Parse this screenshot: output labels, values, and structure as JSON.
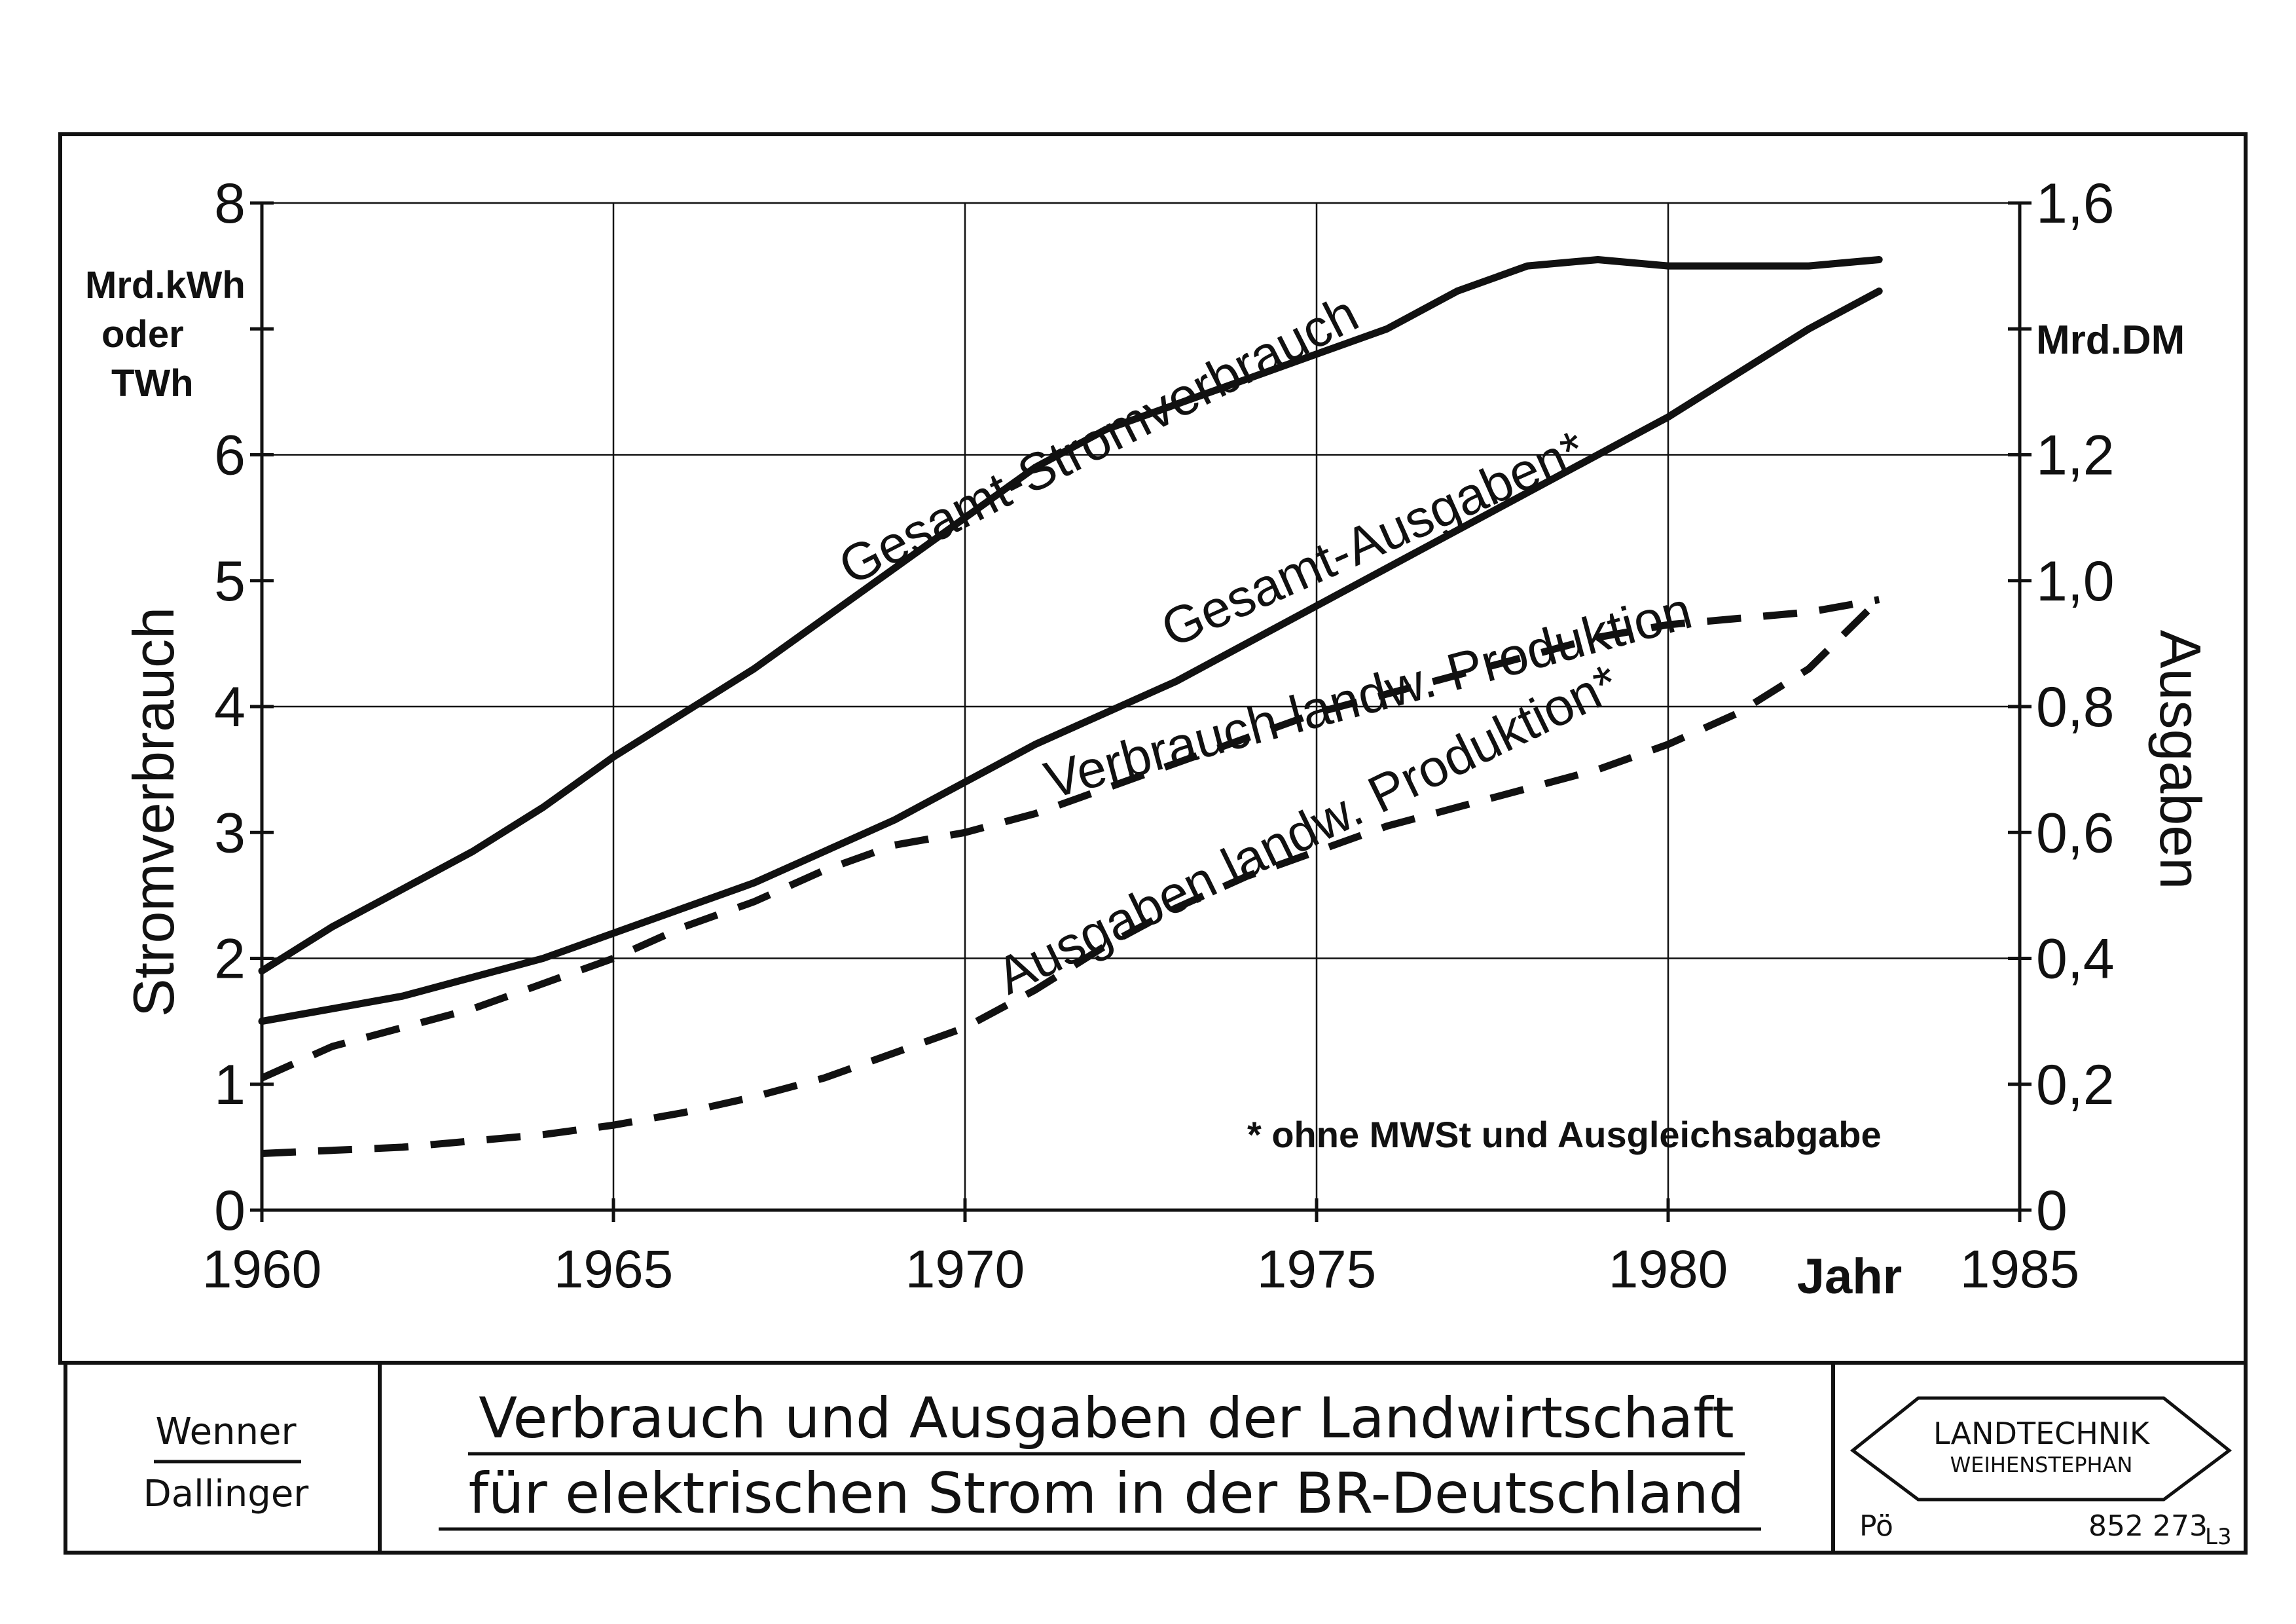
{
  "chart_data": {
    "type": "line",
    "title": "Verbrauch und Ausgaben der Landwirtschaft für elektrischen Strom in der BR-Deutschland",
    "xlabel": "Jahr",
    "xlim": [
      1960,
      1985
    ],
    "x_ticks": [
      1960,
      1965,
      1970,
      1975,
      1980,
      1985
    ],
    "x_tick_labels": [
      "1960",
      "1965",
      "1970",
      "1975",
      "1980",
      "1985"
    ],
    "ylabel": "Stromverbrauch",
    "ylabel_unit": [
      "Mrd.kWh",
      "oder",
      "TWh"
    ],
    "ylim": [
      0,
      8
    ],
    "y_ticks": [
      0,
      1,
      2,
      3,
      4,
      5,
      6,
      7,
      8
    ],
    "y_tick_labels": [
      "0",
      "1",
      "2",
      "3",
      "4",
      "5",
      "6",
      "",
      "8"
    ],
    "y2label": "Ausgaben",
    "y2label_unit": "Mrd.DM",
    "y2lim": [
      0,
      1.6
    ],
    "y2_ticks": [
      0,
      0.2,
      0.4,
      0.6,
      0.8,
      1.0,
      1.2,
      1.4,
      1.6
    ],
    "y2_tick_labels": [
      "0",
      "0,2",
      "0,4",
      "0,6",
      "0,8",
      "1,0",
      "1,2",
      "",
      "1,6"
    ],
    "grid": true,
    "legend": "none (curves labelled directly)",
    "footnote": "* ohne MWSt und Ausgleichsabgabe",
    "series": [
      {
        "name": "Gesamt-Stromverbrauch",
        "axis": "left",
        "style": "solid",
        "x": [
          1960,
          1961,
          1962,
          1963,
          1964,
          1965,
          1966,
          1967,
          1968,
          1969,
          1970,
          1971,
          1972,
          1973,
          1974,
          1975,
          1976,
          1977,
          1978,
          1979,
          1980,
          1981,
          1982,
          1983
        ],
        "y": [
          1.9,
          2.25,
          2.55,
          2.85,
          3.2,
          3.6,
          3.95,
          4.3,
          4.7,
          5.1,
          5.5,
          5.9,
          6.2,
          6.4,
          6.6,
          6.8,
          7.0,
          7.3,
          7.5,
          7.55,
          7.5,
          7.5,
          7.5,
          7.55
        ]
      },
      {
        "name": "Gesamt-Ausgaben*",
        "axis": "right",
        "style": "solid",
        "x": [
          1960,
          1961,
          1962,
          1963,
          1964,
          1965,
          1966,
          1967,
          1968,
          1969,
          1970,
          1971,
          1972,
          1973,
          1974,
          1975,
          1976,
          1977,
          1978,
          1979,
          1980,
          1981,
          1982,
          1983
        ],
        "y": [
          0.3,
          0.32,
          0.34,
          0.37,
          0.4,
          0.44,
          0.48,
          0.52,
          0.57,
          0.62,
          0.68,
          0.74,
          0.79,
          0.84,
          0.9,
          0.96,
          1.02,
          1.08,
          1.14,
          1.2,
          1.26,
          1.33,
          1.4,
          1.46
        ]
      },
      {
        "name": "Verbrauch landw. Produktion",
        "axis": "left",
        "style": "dashed",
        "x": [
          1960,
          1961,
          1962,
          1963,
          1964,
          1965,
          1966,
          1967,
          1968,
          1969,
          1970,
          1971,
          1972,
          1973,
          1974,
          1975,
          1976,
          1977,
          1978,
          1979,
          1980,
          1981,
          1982,
          1983
        ],
        "y": [
          1.05,
          1.3,
          1.45,
          1.6,
          1.8,
          2.0,
          2.25,
          2.45,
          2.7,
          2.9,
          3.0,
          3.15,
          3.35,
          3.55,
          3.75,
          3.95,
          4.1,
          4.25,
          4.4,
          4.55,
          4.65,
          4.7,
          4.75,
          4.85
        ]
      },
      {
        "name": "Ausgaben landw. Produktion*",
        "axis": "right",
        "style": "dashed",
        "x": [
          1960,
          1961,
          1962,
          1963,
          1964,
          1965,
          1966,
          1967,
          1968,
          1969,
          1970,
          1971,
          1972,
          1973,
          1974,
          1975,
          1976,
          1977,
          1978,
          1979,
          1980,
          1981,
          1982,
          1983
        ],
        "y": [
          0.09,
          0.095,
          0.1,
          0.11,
          0.12,
          0.135,
          0.155,
          0.18,
          0.21,
          0.25,
          0.29,
          0.35,
          0.42,
          0.48,
          0.53,
          0.57,
          0.61,
          0.64,
          0.67,
          0.7,
          0.74,
          0.79,
          0.86,
          0.97
        ]
      }
    ]
  },
  "footer": {
    "authors": [
      "Wenner",
      "Dallinger"
    ],
    "title_lines": [
      "Verbrauch und Ausgaben der Landwirtschaft",
      "für elektrischen Strom in der BR-Deutschland"
    ],
    "logo_text": [
      "LANDTECHNIK",
      "WEIHENSTEPHAN"
    ],
    "initials": "Pö",
    "code": "852 273",
    "code_suffix": "L3"
  }
}
